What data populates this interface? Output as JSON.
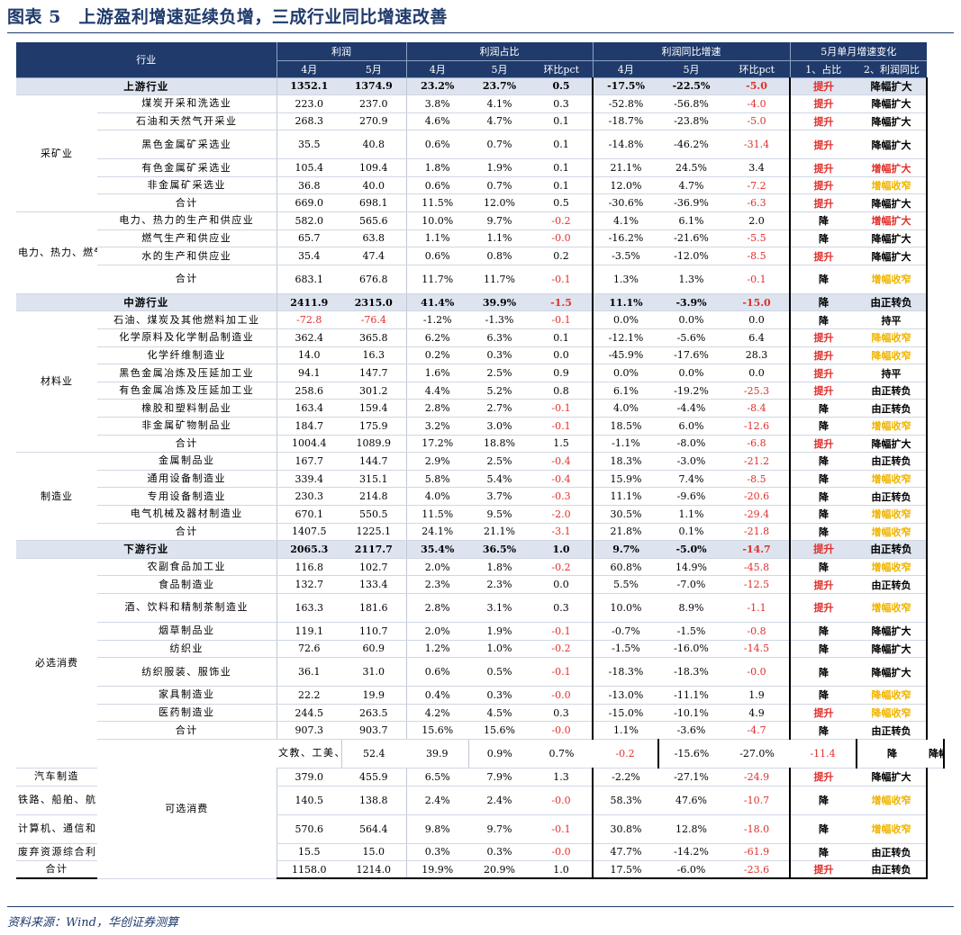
{
  "title": "图表 5　上游盈利增速延续负增，三成行业同比增速改善",
  "source": "资料来源：Wind，华创证券测算",
  "header": {
    "industry": "行业",
    "profit": "利润",
    "share": "利润占比",
    "growth": "利润同比增速",
    "change": "5月单月增速变化",
    "apr": "4月",
    "may": "5月",
    "mom": "环比pct",
    "share_change": "1、占比",
    "growth_change": "2、利润同比"
  },
  "colors": {
    "header_bg": "#1f3a6b",
    "section_bg": "#dde4ef",
    "red": "#e0302b",
    "yellow": "#f0b400"
  },
  "rows": [
    {
      "type": "sect",
      "name": "上游行业",
      "v": [
        "1352.1",
        "1374.9",
        "23.2%",
        "23.7%",
        "0.5",
        "-17.5%",
        "-22.5%",
        "-5.0"
      ],
      "neg": [
        7
      ],
      "c1": "提升",
      "c1r": true,
      "c2": "降幅扩大",
      "c2c": ""
    },
    {
      "type": "row",
      "group": "采矿业",
      "gspan": 6,
      "name": "煤炭开采和洗选业",
      "v": [
        "223.0",
        "237.0",
        "3.8%",
        "4.1%",
        "0.3",
        "-52.8%",
        "-56.8%",
        "-4.0"
      ],
      "neg": [
        7
      ],
      "c1": "提升",
      "c1r": true,
      "c2": "降幅扩大",
      "c2c": ""
    },
    {
      "type": "row",
      "name": "石油和天然气开采业",
      "v": [
        "268.3",
        "270.9",
        "4.6%",
        "4.7%",
        "0.1",
        "-18.7%",
        "-23.8%",
        "-5.0"
      ],
      "neg": [
        7
      ],
      "c1": "提升",
      "c1r": true,
      "c2": "降幅扩大",
      "c2c": ""
    },
    {
      "type": "row",
      "tall": true,
      "name": "黑色金属矿采选业",
      "v": [
        "35.5",
        "40.8",
        "0.6%",
        "0.7%",
        "0.1",
        "-14.8%",
        "-46.2%",
        "-31.4"
      ],
      "neg": [
        7
      ],
      "c1": "提升",
      "c1r": true,
      "c2": "降幅扩大",
      "c2c": ""
    },
    {
      "type": "row",
      "name": "有色金属矿采选业",
      "v": [
        "105.4",
        "109.4",
        "1.8%",
        "1.9%",
        "0.1",
        "21.1%",
        "24.5%",
        "3.4"
      ],
      "neg": [],
      "c1": "提升",
      "c1r": true,
      "c2": "增幅扩大",
      "c2c": "red"
    },
    {
      "type": "row",
      "name": "非金属矿采选业",
      "v": [
        "36.8",
        "40.0",
        "0.6%",
        "0.7%",
        "0.1",
        "12.0%",
        "4.7%",
        "-7.2"
      ],
      "neg": [
        7
      ],
      "c1": "提升",
      "c1r": true,
      "c2": "增幅收窄",
      "c2c": "yel"
    },
    {
      "type": "row",
      "name": "合计",
      "v": [
        "669.0",
        "698.1",
        "11.5%",
        "12.0%",
        "0.5",
        "-30.6%",
        "-36.9%",
        "-6.3"
      ],
      "neg": [
        7
      ],
      "c1": "提升",
      "c1r": true,
      "c2": "降幅扩大",
      "c2c": ""
    },
    {
      "type": "row",
      "group": "电力、热力、燃气及水的生产和供应业",
      "gspan": 4,
      "name": "电力、热力的生产和供应业",
      "v": [
        "582.0",
        "565.6",
        "10.0%",
        "9.7%",
        "-0.2",
        "4.1%",
        "6.1%",
        "2.0"
      ],
      "neg": [
        4
      ],
      "c1": "降",
      "c1r": false,
      "c2": "增幅扩大",
      "c2c": "red"
    },
    {
      "type": "row",
      "name": "燃气生产和供应业",
      "v": [
        "65.7",
        "63.8",
        "1.1%",
        "1.1%",
        "-0.0",
        "-16.2%",
        "-21.6%",
        "-5.5"
      ],
      "neg": [
        4,
        7
      ],
      "c1": "降",
      "c1r": false,
      "c2": "降幅扩大",
      "c2c": ""
    },
    {
      "type": "row",
      "name": "水的生产和供应业",
      "v": [
        "35.4",
        "47.4",
        "0.6%",
        "0.8%",
        "0.2",
        "-3.5%",
        "-12.0%",
        "-8.5"
      ],
      "neg": [
        7
      ],
      "c1": "提升",
      "c1r": true,
      "c2": "降幅扩大",
      "c2c": ""
    },
    {
      "type": "row",
      "tall": true,
      "name": "合计",
      "v": [
        "683.1",
        "676.8",
        "11.7%",
        "11.7%",
        "-0.1",
        "1.3%",
        "1.3%",
        "-0.1"
      ],
      "neg": [
        4,
        7
      ],
      "c1": "降",
      "c1r": false,
      "c2": "增幅收窄",
      "c2c": "yel"
    },
    {
      "type": "sect",
      "name": "中游行业",
      "v": [
        "2411.9",
        "2315.0",
        "41.4%",
        "39.9%",
        "-1.5",
        "11.1%",
        "-3.9%",
        "-15.0"
      ],
      "neg": [
        4,
        7
      ],
      "c1": "降",
      "c1r": false,
      "c2": "由正转负",
      "c2c": ""
    },
    {
      "type": "row",
      "group": "材料业",
      "gspan": 8,
      "name": "石油、煤炭及其他燃料加工业",
      "v": [
        "-72.8",
        "-76.4",
        "-1.2%",
        "-1.3%",
        "-0.1",
        "0.0%",
        "0.0%",
        "0.0"
      ],
      "neg": [
        0,
        1,
        4
      ],
      "c1": "降",
      "c1r": false,
      "c2": "持平",
      "c2c": ""
    },
    {
      "type": "row",
      "name": "化学原料及化学制品制造业",
      "v": [
        "362.4",
        "365.8",
        "6.2%",
        "6.3%",
        "0.1",
        "-12.1%",
        "-5.6%",
        "6.4"
      ],
      "neg": [],
      "c1": "提升",
      "c1r": true,
      "c2": "降幅收窄",
      "c2c": "yel"
    },
    {
      "type": "row",
      "name": "化学纤维制造业",
      "v": [
        "14.0",
        "16.3",
        "0.2%",
        "0.3%",
        "0.0",
        "-45.9%",
        "-17.6%",
        "28.3"
      ],
      "neg": [],
      "c1": "提升",
      "c1r": true,
      "c2": "降幅收窄",
      "c2c": "yel"
    },
    {
      "type": "row",
      "name": "黑色金属冶炼及压延加工业",
      "v": [
        "94.1",
        "147.7",
        "1.6%",
        "2.5%",
        "0.9",
        "0.0%",
        "0.0%",
        "0.0"
      ],
      "neg": [],
      "c1": "提升",
      "c1r": true,
      "c2": "持平",
      "c2c": ""
    },
    {
      "type": "row",
      "name": "有色金属冶炼及压延加工业",
      "v": [
        "258.6",
        "301.2",
        "4.4%",
        "5.2%",
        "0.8",
        "6.1%",
        "-19.2%",
        "-25.3"
      ],
      "neg": [
        7
      ],
      "c1": "提升",
      "c1r": true,
      "c2": "由正转负",
      "c2c": ""
    },
    {
      "type": "row",
      "name": "橡胶和塑料制品业",
      "v": [
        "163.4",
        "159.4",
        "2.8%",
        "2.7%",
        "-0.1",
        "4.0%",
        "-4.4%",
        "-8.4"
      ],
      "neg": [
        4,
        7
      ],
      "c1": "降",
      "c1r": false,
      "c2": "由正转负",
      "c2c": ""
    },
    {
      "type": "row",
      "name": "非金属矿物制品业",
      "v": [
        "184.7",
        "175.9",
        "3.2%",
        "3.0%",
        "-0.1",
        "18.5%",
        "6.0%",
        "-12.6"
      ],
      "neg": [
        4,
        7
      ],
      "c1": "降",
      "c1r": false,
      "c2": "增幅收窄",
      "c2c": "yel"
    },
    {
      "type": "row",
      "name": "合计",
      "v": [
        "1004.4",
        "1089.9",
        "17.2%",
        "18.8%",
        "1.5",
        "-1.1%",
        "-8.0%",
        "-6.8"
      ],
      "neg": [
        7
      ],
      "c1": "提升",
      "c1r": true,
      "c2": "降幅扩大",
      "c2c": ""
    },
    {
      "type": "row",
      "group": "制造业",
      "gspan": 5,
      "name": "金属制品业",
      "v": [
        "167.7",
        "144.7",
        "2.9%",
        "2.5%",
        "-0.4",
        "18.3%",
        "-3.0%",
        "-21.2"
      ],
      "neg": [
        4,
        7
      ],
      "c1": "降",
      "c1r": false,
      "c2": "由正转负",
      "c2c": ""
    },
    {
      "type": "row",
      "name": "通用设备制造业",
      "v": [
        "339.4",
        "315.1",
        "5.8%",
        "5.4%",
        "-0.4",
        "15.9%",
        "7.4%",
        "-8.5"
      ],
      "neg": [
        4,
        7
      ],
      "c1": "降",
      "c1r": false,
      "c2": "增幅收窄",
      "c2c": "yel"
    },
    {
      "type": "row",
      "name": "专用设备制造业",
      "v": [
        "230.3",
        "214.8",
        "4.0%",
        "3.7%",
        "-0.3",
        "11.1%",
        "-9.6%",
        "-20.6"
      ],
      "neg": [
        4,
        7
      ],
      "c1": "降",
      "c1r": false,
      "c2": "由正转负",
      "c2c": ""
    },
    {
      "type": "row",
      "name": "电气机械及器材制造业",
      "v": [
        "670.1",
        "550.5",
        "11.5%",
        "9.5%",
        "-2.0",
        "30.5%",
        "1.1%",
        "-29.4"
      ],
      "neg": [
        4,
        7
      ],
      "c1": "降",
      "c1r": false,
      "c2": "增幅收窄",
      "c2c": "yel"
    },
    {
      "type": "row",
      "name": "合计",
      "v": [
        "1407.5",
        "1225.1",
        "24.1%",
        "21.1%",
        "-3.1",
        "21.8%",
        "0.1%",
        "-21.8"
      ],
      "neg": [
        4,
        7
      ],
      "c1": "降",
      "c1r": false,
      "c2": "增幅收窄",
      "c2c": "yel"
    },
    {
      "type": "sect",
      "name": "下游行业",
      "v": [
        "2065.3",
        "2117.7",
        "35.4%",
        "36.5%",
        "1.0",
        "9.7%",
        "-5.0%",
        "-14.7"
      ],
      "neg": [
        7
      ],
      "c1": "提升",
      "c1r": true,
      "c2": "由正转负",
      "c2c": ""
    },
    {
      "type": "row",
      "group": "必选消费",
      "gspan": 10,
      "name": "农副食品加工业",
      "v": [
        "116.8",
        "102.7",
        "2.0%",
        "1.8%",
        "-0.2",
        "60.8%",
        "14.9%",
        "-45.8"
      ],
      "neg": [
        4,
        7
      ],
      "c1": "降",
      "c1r": false,
      "c2": "增幅收窄",
      "c2c": "yel"
    },
    {
      "type": "row",
      "name": "食品制造业",
      "v": [
        "132.7",
        "133.4",
        "2.3%",
        "2.3%",
        "0.0",
        "5.5%",
        "-7.0%",
        "-12.5"
      ],
      "neg": [
        7
      ],
      "c1": "提升",
      "c1r": true,
      "c2": "由正转负",
      "c2c": ""
    },
    {
      "type": "row",
      "tall": true,
      "name": "酒、饮料和精制茶制造业",
      "v": [
        "163.3",
        "181.6",
        "2.8%",
        "3.1%",
        "0.3",
        "10.0%",
        "8.9%",
        "-1.1"
      ],
      "neg": [
        7
      ],
      "c1": "提升",
      "c1r": true,
      "c2": "增幅收窄",
      "c2c": "yel"
    },
    {
      "type": "row",
      "name": "烟草制品业",
      "v": [
        "119.1",
        "110.7",
        "2.0%",
        "1.9%",
        "-0.1",
        "-0.7%",
        "-1.5%",
        "-0.8"
      ],
      "neg": [
        4,
        7
      ],
      "c1": "降",
      "c1r": false,
      "c2": "降幅扩大",
      "c2c": ""
    },
    {
      "type": "row",
      "name": "纺织业",
      "v": [
        "72.6",
        "60.9",
        "1.2%",
        "1.0%",
        "-0.2",
        "-1.5%",
        "-16.0%",
        "-14.5"
      ],
      "neg": [
        4,
        7
      ],
      "c1": "降",
      "c1r": false,
      "c2": "降幅扩大",
      "c2c": ""
    },
    {
      "type": "row",
      "tall": true,
      "name": "纺织服装、服饰业",
      "v": [
        "36.1",
        "31.0",
        "0.6%",
        "0.5%",
        "-0.1",
        "-18.3%",
        "-18.3%",
        "-0.0"
      ],
      "neg": [
        4,
        7
      ],
      "c1": "降",
      "c1r": false,
      "c2": "降幅扩大",
      "c2c": ""
    },
    {
      "type": "row",
      "name": "家具制造业",
      "v": [
        "22.2",
        "19.9",
        "0.4%",
        "0.3%",
        "-0.0",
        "-13.0%",
        "-11.1%",
        "1.9"
      ],
      "neg": [
        4
      ],
      "c1": "降",
      "c1r": false,
      "c2": "降幅收窄",
      "c2c": "yel"
    },
    {
      "type": "row",
      "name": "医药制造业",
      "v": [
        "244.5",
        "263.5",
        "4.2%",
        "4.5%",
        "0.3",
        "-15.0%",
        "-10.1%",
        "4.9"
      ],
      "neg": [],
      "c1": "提升",
      "c1r": true,
      "c2": "降幅收窄",
      "c2c": "yel"
    },
    {
      "type": "row",
      "name": "合计",
      "v": [
        "907.3",
        "903.7",
        "15.6%",
        "15.6%",
        "-0.0",
        "1.1%",
        "-3.6%",
        "-4.7"
      ],
      "neg": [
        4,
        7
      ],
      "c1": "降",
      "c1r": false,
      "c2": "由正转负",
      "c2c": ""
    },
    {
      "type": "row",
      "group": "可选消费",
      "gspan": 7,
      "tall": true,
      "name": "文教、工美、体育和娱乐用品制造业",
      "v": [
        "52.4",
        "39.9",
        "0.9%",
        "0.7%",
        "-0.2",
        "-15.6%",
        "-27.0%",
        "-11.4"
      ],
      "neg": [
        4,
        7
      ],
      "c1": "降",
      "c1r": false,
      "c2": "降幅扩大",
      "c2c": ""
    },
    {
      "type": "row",
      "name": "汽车制造",
      "v": [
        "379.0",
        "455.9",
        "6.5%",
        "7.9%",
        "1.3",
        "-2.2%",
        "-27.1%",
        "-24.9"
      ],
      "neg": [
        7
      ],
      "c1": "提升",
      "c1r": true,
      "c2": "降幅扩大",
      "c2c": ""
    },
    {
      "type": "row",
      "tall": true,
      "name": "铁路、船舶、航空航天和其他运输设备制造业",
      "v": [
        "140.5",
        "138.8",
        "2.4%",
        "2.4%",
        "-0.0",
        "58.3%",
        "47.6%",
        "-10.7"
      ],
      "neg": [
        4,
        7
      ],
      "c1": "降",
      "c1r": false,
      "c2": "增幅收窄",
      "c2c": "yel"
    },
    {
      "type": "row",
      "tall": true,
      "name": "计算机、通信和其他电子设备制造业",
      "v": [
        "570.6",
        "564.4",
        "9.8%",
        "9.7%",
        "-0.1",
        "30.8%",
        "12.8%",
        "-18.0"
      ],
      "neg": [
        4,
        7
      ],
      "c1": "降",
      "c1r": false,
      "c2": "增幅收窄",
      "c2c": "yel"
    },
    {
      "type": "row",
      "name": "废弃资源综合利用业",
      "v": [
        "15.5",
        "15.0",
        "0.3%",
        "0.3%",
        "-0.0",
        "47.7%",
        "-14.2%",
        "-61.9"
      ],
      "neg": [
        4,
        7
      ],
      "c1": "降",
      "c1r": false,
      "c2": "由正转负",
      "c2c": ""
    },
    {
      "type": "row",
      "name": "合计",
      "v": [
        "1158.0",
        "1214.0",
        "19.9%",
        "20.9%",
        "1.0",
        "17.5%",
        "-6.0%",
        "-23.6"
      ],
      "neg": [
        7
      ],
      "c1": "提升",
      "c1r": true,
      "c2": "由正转负",
      "c2c": ""
    }
  ]
}
